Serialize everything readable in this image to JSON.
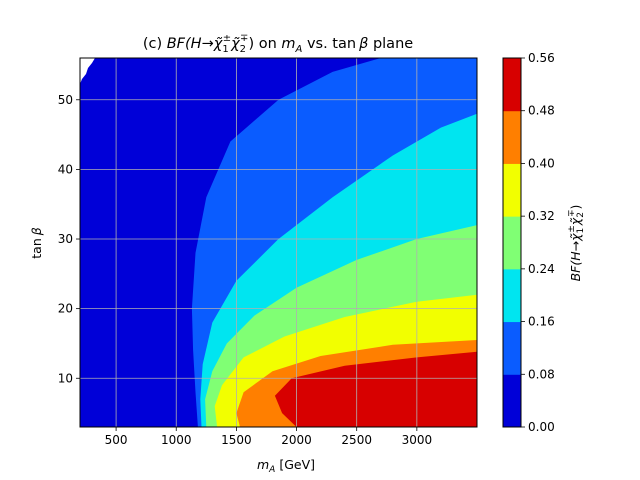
{
  "chart_data": {
    "type": "heatmap",
    "title": "(c) BF(H→χ̃1±χ̃2∓) on mA vs. tanβ plane",
    "title_parts": {
      "prefix": "(c) ",
      "bf": "BF(H→χ̃",
      "sub1": "1",
      "sup1": "±",
      "chi": "χ̃",
      "sub2": "2",
      "sup2": "∓",
      "close": ") on ",
      "m": "m",
      "msub": "A",
      "vs": " vs. tan",
      "beta": "β",
      "plane": " plane"
    },
    "xlabel": "m_A [GeV]",
    "xlabel_parts": {
      "m": "m",
      "sub": "A",
      "unit": " [GeV]"
    },
    "ylabel": "tan β",
    "ylabel_parts": {
      "tan": "tan",
      "beta": "β"
    },
    "colorbar_label": "BF(H→χ̃1±χ̃2∓)",
    "xlim": [
      200,
      3500
    ],
    "ylim": [
      3,
      56
    ],
    "xticks": [
      "500",
      "1000",
      "1500",
      "2000",
      "2500",
      "3000"
    ],
    "xtick_values": [
      500,
      1000,
      1500,
      2000,
      2500,
      3000
    ],
    "yticks": [
      "10",
      "20",
      "30",
      "40",
      "50"
    ],
    "ytick_values": [
      10,
      20,
      30,
      40,
      50
    ],
    "grid": true,
    "colorbar_levels": [
      "0.00",
      "0.08",
      "0.16",
      "0.24",
      "0.32",
      "0.40",
      "0.48",
      "0.56"
    ],
    "level_values": [
      0,
      0.08,
      0.16,
      0.24,
      0.32,
      0.4,
      0.48,
      0.56
    ],
    "band_colors": [
      "#0000d8",
      "#0a5cff",
      "#00e5f0",
      "#80ff74",
      "#f2ff00",
      "#ff7f00",
      "#d70000"
    ],
    "contour_boundaries": [
      {
        "level": 0.08,
        "points": [
          [
            1180,
            3
          ],
          [
            1160,
            8
          ],
          [
            1140,
            14
          ],
          [
            1130,
            20
          ],
          [
            1160,
            28
          ],
          [
            1250,
            36
          ],
          [
            1450,
            44
          ],
          [
            1850,
            50
          ],
          [
            2300,
            54
          ],
          [
            2700,
            56
          ]
        ]
      },
      {
        "level": 0.16,
        "points": [
          [
            1210,
            3
          ],
          [
            1200,
            7
          ],
          [
            1220,
            12
          ],
          [
            1300,
            18
          ],
          [
            1500,
            24
          ],
          [
            1850,
            30
          ],
          [
            2300,
            36
          ],
          [
            2800,
            42
          ],
          [
            3200,
            46
          ],
          [
            3500,
            48
          ]
        ]
      },
      {
        "level": 0.24,
        "points": [
          [
            1250,
            3
          ],
          [
            1240,
            7
          ],
          [
            1300,
            11
          ],
          [
            1420,
            15
          ],
          [
            1650,
            19
          ],
          [
            2000,
            23
          ],
          [
            2500,
            27
          ],
          [
            3000,
            30
          ],
          [
            3500,
            32
          ]
        ]
      },
      {
        "level": 0.32,
        "points": [
          [
            1340,
            3
          ],
          [
            1320,
            6
          ],
          [
            1380,
            9
          ],
          [
            1560,
            13
          ],
          [
            1900,
            16
          ],
          [
            2400,
            18.8
          ],
          [
            3000,
            21
          ],
          [
            3500,
            22
          ]
        ]
      },
      {
        "level": 0.4,
        "points": [
          [
            1530,
            3
          ],
          [
            1500,
            5
          ],
          [
            1560,
            8
          ],
          [
            1800,
            11
          ],
          [
            2200,
            13.2
          ],
          [
            2800,
            14.8
          ],
          [
            3500,
            15.5
          ]
        ]
      },
      {
        "level": 0.48,
        "points": [
          [
            2000,
            3
          ],
          [
            1880,
            5
          ],
          [
            1820,
            7.5
          ],
          [
            1960,
            10
          ],
          [
            2400,
            11.8
          ],
          [
            3000,
            13
          ],
          [
            3500,
            13.8
          ]
        ]
      }
    ]
  }
}
